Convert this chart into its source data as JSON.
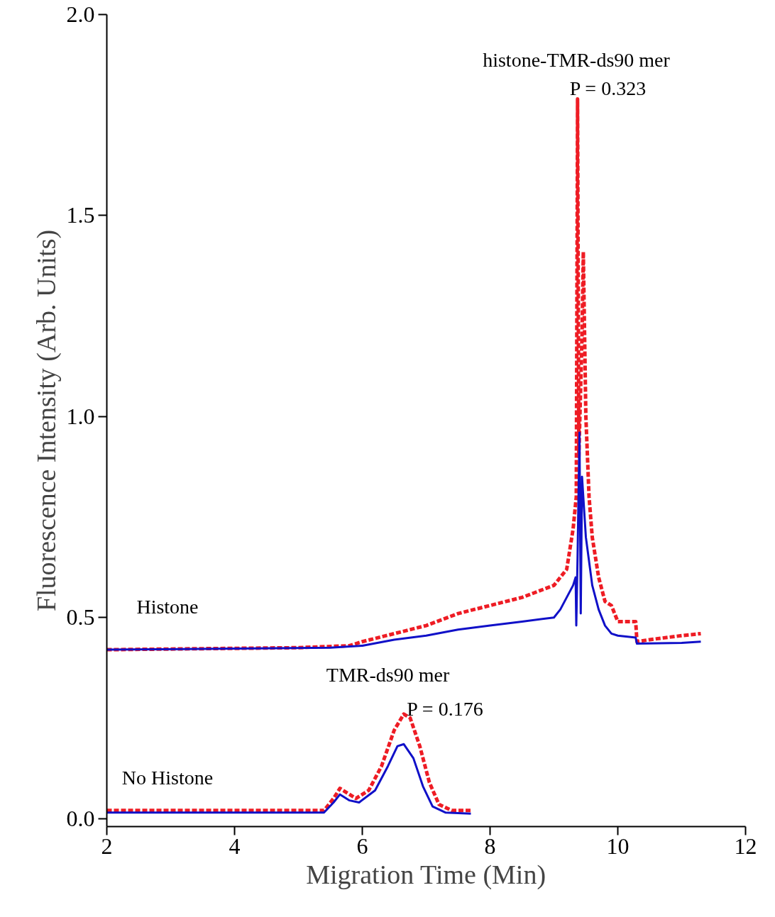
{
  "chart_data": {
    "type": "line",
    "xlabel": "Migration Time (Min)",
    "ylabel": "Fluorescence Intensity (Arb. Units)",
    "xlim": [
      2,
      12
    ],
    "ylim": [
      -0.02,
      2.0
    ],
    "xticks": [
      2,
      4,
      6,
      8,
      10,
      12
    ],
    "yticks": [
      {
        "value": 0,
        "label": "0.0"
      },
      {
        "value": 0.5,
        "label": "0.5"
      },
      {
        "value": 1,
        "label": "1.0"
      },
      {
        "value": 1.5,
        "label": "1.5"
      },
      {
        "value": 2,
        "label": "2.0"
      }
    ],
    "grid": false,
    "series": [
      {
        "color": "#ee1c24",
        "line_style": "dashed",
        "x": [
          2,
          5,
          5.8,
          6,
          6.5,
          7,
          7.5,
          8,
          8.5,
          9,
          9.2,
          9.3,
          9.35,
          9.37,
          9.39,
          9.44,
          9.46,
          9.5,
          9.55,
          9.6,
          9.7,
          9.8,
          9.9,
          10.0,
          10.28,
          10.3,
          10.5,
          11,
          11.3
        ],
        "values": [
          0.42,
          0.425,
          0.43,
          0.44,
          0.46,
          0.48,
          0.51,
          0.53,
          0.55,
          0.58,
          0.62,
          0.72,
          0.8,
          1.79,
          0.9,
          1.2,
          1.41,
          1.0,
          0.8,
          0.7,
          0.6,
          0.54,
          0.53,
          0.49,
          0.49,
          0.44,
          0.445,
          0.455,
          0.46
        ]
      },
      {
        "color": "#1010c8",
        "line_style": "solid",
        "x": [
          2,
          5.5,
          6,
          6.5,
          7,
          7.5,
          8,
          8.5,
          9,
          9.1,
          9.2,
          9.3,
          9.34,
          9.35,
          9.37,
          9.4,
          9.42,
          9.44,
          9.5,
          9.6,
          9.7,
          9.8,
          9.9,
          10.0,
          10.28,
          10.3,
          11,
          11.3
        ],
        "values": [
          0.42,
          0.425,
          0.43,
          0.445,
          0.455,
          0.47,
          0.48,
          0.49,
          0.5,
          0.52,
          0.55,
          0.58,
          0.6,
          0.48,
          0.65,
          0.96,
          0.51,
          0.85,
          0.7,
          0.58,
          0.52,
          0.48,
          0.46,
          0.455,
          0.45,
          0.435,
          0.437,
          0.44
        ]
      },
      {
        "color": "#ee1c24",
        "line_style": "dashed",
        "x": [
          2,
          5,
          5.4,
          5.55,
          5.65,
          5.75,
          5.9,
          6.1,
          6.3,
          6.5,
          6.65,
          6.75,
          6.9,
          7.05,
          7.2,
          7.4,
          7.7
        ],
        "values": [
          0.02,
          0.02,
          0.02,
          0.05,
          0.075,
          0.065,
          0.05,
          0.07,
          0.13,
          0.22,
          0.26,
          0.25,
          0.18,
          0.09,
          0.035,
          0.02,
          0.02
        ]
      },
      {
        "color": "#1010c8",
        "line_style": "solid",
        "x": [
          2,
          5.4,
          5.55,
          5.65,
          5.8,
          5.95,
          6.2,
          6.4,
          6.55,
          6.65,
          6.8,
          6.95,
          7.1,
          7.3,
          7.7
        ],
        "values": [
          0.015,
          0.015,
          0.04,
          0.06,
          0.045,
          0.04,
          0.07,
          0.13,
          0.18,
          0.185,
          0.15,
          0.08,
          0.03,
          0.015,
          0.012
        ]
      }
    ],
    "annotations": [
      "histone-TMR-ds90 mer",
      "P = 0.323",
      "Histone",
      "TMR-ds90 mer",
      "P = 0.176",
      "No Histone"
    ]
  }
}
